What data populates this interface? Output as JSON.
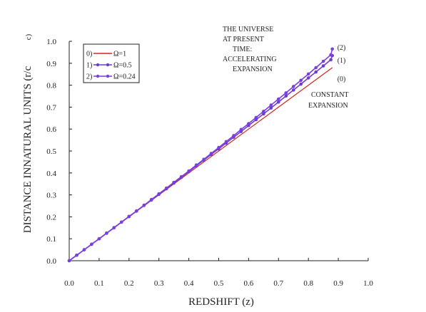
{
  "chart_data": {
    "type": "line",
    "xlabel": "REDSHIFT (z)",
    "ylabel": "DISTANCE INNATURAL UNITS (r/c",
    "ylabel_tail": "c)",
    "xlim": [
      0.0,
      1.0
    ],
    "ylim": [
      0.0,
      1.0
    ],
    "x_ticks": [
      "0.0",
      "0.1",
      "0.2",
      "0.3",
      "0.4",
      "0.5",
      "0.6",
      "0.7",
      "0.8",
      "0.9",
      "1.0"
    ],
    "y_ticks": [
      "0.0",
      "0.1",
      "0.2",
      "0.3",
      "0.4",
      "0.5",
      "0.6",
      "0.7",
      "0.8",
      "0.9",
      "1.0"
    ],
    "grid": false,
    "legend_position": "top-left",
    "series": [
      {
        "name": "Ω=1",
        "legend_index": "0",
        "end_label": "(0)",
        "color": "#d0281c",
        "marker": false,
        "x": [
          0.0,
          0.1,
          0.2,
          0.3,
          0.4,
          0.5,
          0.6,
          0.7,
          0.8,
          0.88
        ],
        "y": [
          0.0,
          0.1,
          0.2,
          0.3,
          0.4,
          0.5,
          0.6,
          0.7,
          0.8,
          0.88
        ]
      },
      {
        "name": "Ω=0.5",
        "legend_index": "1",
        "end_label": "(1)",
        "color": "#6d3ccf",
        "marker": true,
        "x": [
          0.0,
          0.025,
          0.05,
          0.075,
          0.1,
          0.125,
          0.15,
          0.175,
          0.2,
          0.225,
          0.25,
          0.275,
          0.3,
          0.325,
          0.35,
          0.375,
          0.4,
          0.425,
          0.45,
          0.475,
          0.5,
          0.525,
          0.55,
          0.575,
          0.6,
          0.625,
          0.65,
          0.675,
          0.7,
          0.725,
          0.75,
          0.775,
          0.8,
          0.825,
          0.85,
          0.875,
          0.88
        ],
        "y": [
          0.0,
          0.025,
          0.05,
          0.075,
          0.1,
          0.125,
          0.15,
          0.176,
          0.201,
          0.226,
          0.252,
          0.277,
          0.303,
          0.328,
          0.354,
          0.38,
          0.406,
          0.432,
          0.458,
          0.484,
          0.51,
          0.536,
          0.563,
          0.589,
          0.616,
          0.643,
          0.669,
          0.696,
          0.723,
          0.751,
          0.778,
          0.805,
          0.833,
          0.86,
          0.888,
          0.916,
          0.935
        ]
      },
      {
        "name": "Ω=0.24",
        "legend_index": "2",
        "end_label": "(2)",
        "color": "#7a3fe0",
        "marker": true,
        "x": [
          0.0,
          0.025,
          0.05,
          0.075,
          0.1,
          0.125,
          0.15,
          0.175,
          0.2,
          0.225,
          0.25,
          0.275,
          0.3,
          0.325,
          0.35,
          0.375,
          0.4,
          0.425,
          0.45,
          0.475,
          0.5,
          0.525,
          0.55,
          0.575,
          0.6,
          0.625,
          0.65,
          0.675,
          0.7,
          0.725,
          0.75,
          0.775,
          0.8,
          0.825,
          0.85,
          0.875,
          0.88
        ],
        "y": [
          0.0,
          0.025,
          0.05,
          0.075,
          0.1,
          0.126,
          0.151,
          0.176,
          0.202,
          0.227,
          0.253,
          0.279,
          0.305,
          0.331,
          0.357,
          0.383,
          0.409,
          0.436,
          0.462,
          0.489,
          0.516,
          0.543,
          0.57,
          0.598,
          0.625,
          0.653,
          0.681,
          0.709,
          0.737,
          0.765,
          0.794,
          0.822,
          0.851,
          0.88,
          0.909,
          0.938,
          0.965
        ]
      }
    ],
    "annotations": {
      "accelerating": [
        "THE UNIVERSE",
        "AT PRESENT",
        "TIME:",
        "ACCELERATING",
        "EXPANSION"
      ],
      "constant": [
        "CONSTANT",
        "EXPANSION"
      ]
    }
  }
}
